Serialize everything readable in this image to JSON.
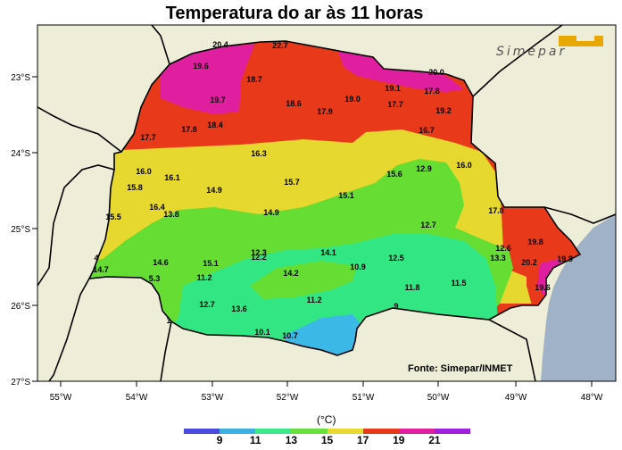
{
  "title": "Temperatura do ar às 11 horas",
  "logo_text": "Simepar",
  "credit": "Fonte: Simepar/INMET",
  "legend": {
    "unit": "(°C)",
    "tick_labels": [
      "9",
      "11",
      "13",
      "15",
      "17",
      "19",
      "21"
    ],
    "colors": [
      "#4a4ae0",
      "#3cb0e0",
      "#3ce88a",
      "#6ae03c",
      "#e8d830",
      "#e83a1a",
      "#e020a0",
      "#a020e0"
    ]
  },
  "map": {
    "lon_labels": [
      "55°W",
      "54°W",
      "53°W",
      "52°W",
      "51°W",
      "50°W",
      "49°W",
      "48°W"
    ],
    "lat_labels": [
      "23°S",
      "24°S",
      "25°S",
      "26°S",
      "27°S"
    ],
    "zone_colors": {
      "land": "#eeeed8",
      "ocean": "#9fb2c8",
      "magenta": "#e01ea0",
      "red": "#e8391a",
      "yellow": "#e6d82e",
      "green": "#66dd33",
      "teal": "#33e684",
      "cyan": "#3cb8e6"
    },
    "stations": [
      "20.4",
      "22.7",
      "19.6",
      "18.7",
      "20.0",
      "19.7",
      "18.6",
      "17.9",
      "19.0",
      "19.1",
      "17.8",
      "17.7",
      "19.2",
      "17.7",
      "17.8",
      "18.4",
      "16.7",
      "16.3",
      "16.0",
      "16.1",
      "15.8",
      "14.9",
      "15.7",
      "15.6",
      "12.9",
      "16.0",
      "15.1",
      "16.4",
      "13.8",
      "14.9",
      "15.5",
      "12.7",
      "17.8",
      "19.8",
      "12.6",
      "19.8",
      "20.2",
      "13.3",
      "4",
      "14.7",
      "14.6",
      "15.1",
      "12.3",
      "12.2",
      "14.1",
      "12.5",
      "5.3",
      "11.2",
      "10.9",
      "14.2",
      "11.8",
      "11.5",
      "19.6",
      "12.7",
      "13.6",
      "11.2",
      "9",
      "1",
      "10.1",
      "10.7"
    ]
  }
}
